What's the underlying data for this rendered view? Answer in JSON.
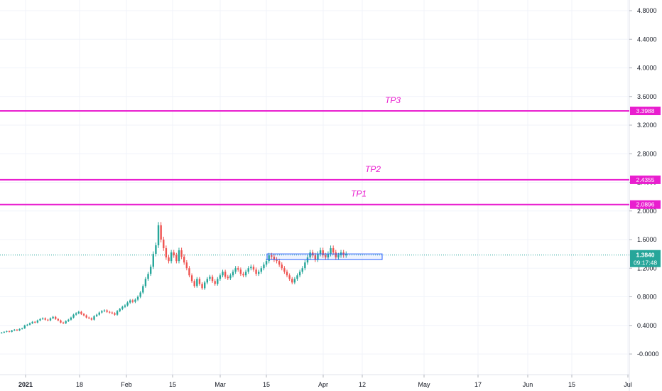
{
  "chart_data": {
    "type": "candlestick",
    "y_axis": {
      "ticks": [
        "4.8000",
        "4.4000",
        "4.0000",
        "3.6000",
        "3.2000",
        "2.8000",
        "2.4000",
        "2.0000",
        "1.6000",
        "1.2000",
        "0.8000",
        "0.4000",
        "-0.0000"
      ],
      "range": [
        -0.3,
        5.0
      ],
      "grid": true,
      "position": "right"
    },
    "x_axis": {
      "ticks": [
        "2021",
        "18",
        "Feb",
        "15",
        "Mar",
        "15",
        "Apr",
        "12",
        "May",
        "17",
        "Jun",
        "15",
        "Jul"
      ]
    },
    "target_lines": [
      {
        "label": "TP3",
        "value": 3.3988,
        "badge": "3.3988",
        "color": "#e91ecf"
      },
      {
        "label": "TP2",
        "value": 2.4355,
        "badge": "2.4355",
        "color": "#e91ecf"
      },
      {
        "label": "TP1",
        "value": 2.0896,
        "badge": "2.0896",
        "color": "#e91ecf"
      }
    ],
    "current_price": {
      "value": 1.384,
      "badge": "1.3840",
      "countdown": "09:17:48",
      "color": "#26a69a"
    },
    "zone_box": {
      "from_label": "Mar 15",
      "to_label": "Apr 20",
      "low": 1.32,
      "high": 1.4,
      "color": "#2962ff"
    },
    "series": {
      "up_color": "#26a69a",
      "down_color": "#ef5350",
      "close": [
        0.3,
        0.31,
        0.32,
        0.31,
        0.33,
        0.34,
        0.33,
        0.35,
        0.36,
        0.4,
        0.41,
        0.43,
        0.45,
        0.44,
        0.47,
        0.49,
        0.5,
        0.48,
        0.47,
        0.5,
        0.52,
        0.49,
        0.47,
        0.44,
        0.43,
        0.46,
        0.48,
        0.51,
        0.55,
        0.57,
        0.59,
        0.56,
        0.54,
        0.51,
        0.5,
        0.48,
        0.53,
        0.55,
        0.58,
        0.6,
        0.61,
        0.59,
        0.58,
        0.57,
        0.55,
        0.6,
        0.63,
        0.66,
        0.68,
        0.72,
        0.75,
        0.73,
        0.76,
        0.8,
        0.86,
        0.95,
        1.05,
        1.12,
        1.22,
        1.4,
        1.52,
        1.8,
        1.6,
        1.48,
        1.35,
        1.3,
        1.42,
        1.38,
        1.3,
        1.45,
        1.36,
        1.28,
        1.2,
        1.1,
        1.02,
        0.95,
        1.05,
        0.98,
        0.92,
        1.0,
        1.05,
        1.08,
        1.02,
        0.98,
        1.05,
        1.1,
        1.15,
        1.08,
        1.06,
        1.1,
        1.15,
        1.2,
        1.18,
        1.12,
        1.1,
        1.15,
        1.2,
        1.22,
        1.18,
        1.12,
        1.15,
        1.2,
        1.25,
        1.3,
        1.38,
        1.36,
        1.32,
        1.3,
        1.25,
        1.2,
        1.15,
        1.1,
        1.05,
        1.0,
        1.05,
        1.1,
        1.15,
        1.2,
        1.28,
        1.35,
        1.42,
        1.38,
        1.32,
        1.4,
        1.45,
        1.38,
        1.35,
        1.4,
        1.48,
        1.42,
        1.35,
        1.38,
        1.42,
        1.38,
        1.4
      ]
    }
  }
}
